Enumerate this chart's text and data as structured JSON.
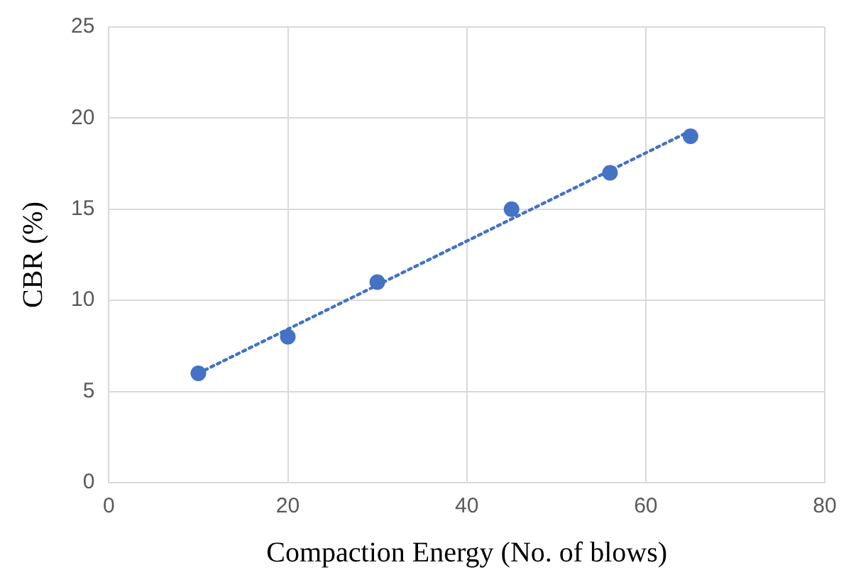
{
  "chart_data": {
    "type": "scatter",
    "xlabel": "Compaction Energy (No. of blows)",
    "ylabel": "CBR (%)",
    "xlim": [
      0,
      80
    ],
    "xticks": [
      0,
      20,
      40,
      60,
      80
    ],
    "ylim": [
      0,
      25
    ],
    "yticks": [
      0,
      5,
      10,
      15,
      20,
      25
    ],
    "grid": true,
    "legend": false,
    "marker": "circle",
    "series": [
      {
        "type": "scatter",
        "color": "#4472c4",
        "x": [
          10,
          20,
          30,
          45,
          56,
          65
        ],
        "values": [
          6,
          8,
          11,
          15,
          17,
          19
        ]
      },
      {
        "type": "line",
        "color": "#4472c4",
        "line_style": "dotted",
        "marker": "none",
        "x": [
          10,
          65
        ],
        "values": [
          6.0,
          19.3
        ]
      }
    ]
  }
}
